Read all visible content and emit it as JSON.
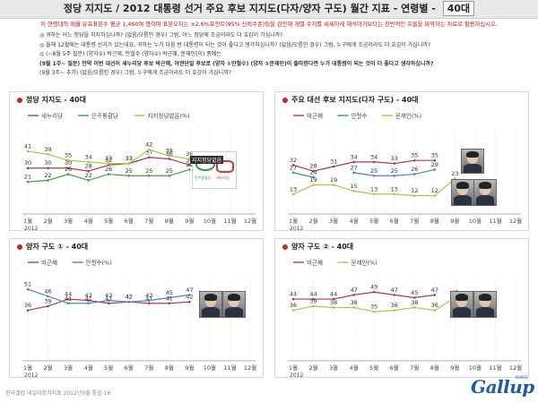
{
  "header": {
    "title": "정당 지지도 / 2012 대통령 선거 주요 후보 지지도(다자/양자 구도) 월간 지표 - 연령별 -",
    "badge": "40대"
  },
  "subtitle": "이 연령대의 매월 유효표본수 평균 1,460여 명이며 표본오차는 ±2.6%포인트(95% 신뢰수준)임을 감안해 개별 수치를 세세하게 해석하기보다는 전반적인 흐름을 파악하는 자료로 활용하십시오.",
  "questions": [
    {
      "text": "◎ 귀하는 어느 정당을 지지하십니까? (없음/모름인 경우) 그럼, 어느 정당에 조금이라도 더 호감이 가십니까?",
      "bold": false
    },
    {
      "text": "◎ 올해 12월에는 대통령 선거가 있는데요, 귀하는 누가 다음 번 대통령이 되는 것이 좋다고 생각하십니까? (없음/모름인 경우) 그럼, 누구에게 조금이라도 더 호감이 가십니까?",
      "bold": false
    },
    {
      "text": "◎ (~8월 5주 질문) (양자①) 박근혜, 안철수 (양자②) 박근혜, 문재인(이) 중에는",
      "bold": false
    },
    {
      "text": "(9월 1주~ 질문) 만약 이번 대선이 새누리당 후보 박근혜, 야권단일 후보로 (양자 ①안철수) (양자 ②문재인)이 출마한다면 누가 대통령이 되는 것이 더 좋다고 생각하십니까?",
      "bold": true
    },
    {
      "text": "(9월 3주~ 추가) (없음/모름인 경우) 그럼, 누구에게 조금이라도 더 호감이 가십니까?",
      "bold": false
    }
  ],
  "photo_tag": "지지정당없음",
  "logo_left_caption": "민주통합당",
  "logo_right_caption": "새누리당",
  "footer": "한국갤럽 데일리정치지표 2012년9월 통합-16",
  "brand": "Gallup",
  "brand_sub": "KOREA",
  "chart_data": [
    {
      "type": "line",
      "title": "정당 지지도 - 40대",
      "categories": [
        "1월",
        "2월",
        "3월",
        "4월",
        "5월",
        "6월",
        "7월",
        "8월",
        "9월",
        "10월",
        "11월",
        "12월"
      ],
      "year_label": "2012",
      "ylim": [
        0,
        55
      ],
      "grid": true,
      "legend": "top",
      "series": [
        {
          "name": "새누리당",
          "color": "#b03a4a",
          "values": [
            30,
            30,
            30,
            28,
            32,
            33,
            37,
            36,
            32,
            null,
            null,
            null
          ]
        },
        {
          "name": "민주통합당",
          "color": "#3aa34a",
          "values": [
            21,
            22,
            26,
            22,
            26,
            25,
            25,
            25,
            29,
            null,
            null,
            null
          ]
        },
        {
          "name": "지지정당없음(%)",
          "color": "#a8c84a",
          "values": [
            41,
            39,
            35,
            34,
            33,
            33,
            42,
            38,
            36,
            null,
            null,
            null
          ]
        }
      ]
    },
    {
      "type": "line",
      "title": "주요 대선 후보 지지도(다자 구도) - 40대",
      "categories": [
        "1월",
        "2월",
        "3월",
        "4월",
        "5월",
        "6월",
        "7월",
        "8월",
        "9월",
        "10월",
        "11월",
        "12월"
      ],
      "year_label": "2012",
      "ylim": [
        0,
        55
      ],
      "grid": true,
      "legend": "top",
      "series": [
        {
          "name": "박근혜",
          "color": "#b03a4a",
          "values": [
            32,
            28,
            31,
            34,
            34,
            33,
            35,
            35,
            null,
            null,
            null,
            null
          ]
        },
        {
          "name": "안철수",
          "color": "#3a8fb5",
          "values": [
            27,
            24,
            null,
            27,
            25,
            25,
            26,
            29,
            null,
            null,
            null,
            null
          ]
        },
        {
          "name": "문재인(%)",
          "color": "#a8c84a",
          "values": [
            13,
            19,
            19,
            15,
            13,
            13,
            12,
            12,
            23,
            null,
            null,
            null
          ]
        }
      ]
    },
    {
      "type": "line",
      "title": "양자 구도 ① - 40대",
      "categories": [
        "1월",
        "2월",
        "3월",
        "4월",
        "5월",
        "6월",
        "7월",
        "8월",
        "9월",
        "10월",
        "11월",
        "12월"
      ],
      "year_label": "2012",
      "ylim": [
        0,
        60
      ],
      "grid": true,
      "legend": "top",
      "series": [
        {
          "name": "박근혜",
          "color": "#b03a4a",
          "values": [
            36,
            39,
            44,
            43,
            41,
            42,
            41,
            41,
            42,
            null,
            null,
            null
          ]
        },
        {
          "name": "안철수(%)",
          "color": "#3a8fb5",
          "values": [
            51,
            46,
            41,
            41,
            43,
            42,
            43,
            45,
            47,
            null,
            null,
            null
          ]
        }
      ]
    },
    {
      "type": "line",
      "title": "양자 구도 ② - 40대",
      "categories": [
        "1월",
        "2월",
        "3월",
        "4월",
        "5월",
        "6월",
        "7월",
        "8월",
        "9월",
        "10월",
        "11월",
        "12월"
      ],
      "year_label": "2012",
      "ylim": [
        0,
        60
      ],
      "grid": true,
      "legend": "top",
      "series": [
        {
          "name": "박근혜",
          "color": "#b03a4a",
          "values": [
            44,
            44,
            44,
            47,
            49,
            47,
            45,
            47,
            null,
            null,
            null,
            null
          ]
        },
        {
          "name": "문재인(%)",
          "color": "#a8c84a",
          "values": [
            36,
            39,
            38,
            38,
            35,
            36,
            38,
            36,
            45,
            null,
            null,
            null
          ]
        }
      ]
    }
  ]
}
